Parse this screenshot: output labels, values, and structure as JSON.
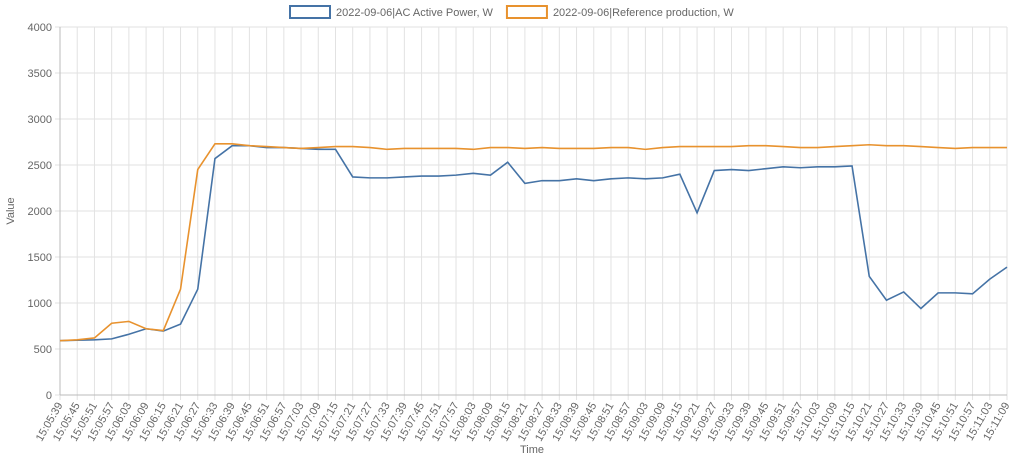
{
  "chart_data": {
    "type": "line",
    "xlabel": "Time",
    "ylabel": "Value",
    "categories": [
      "15:05:39",
      "15:05:45",
      "15:05:51",
      "15:05:57",
      "15:06:03",
      "15:06:09",
      "15:06:15",
      "15:06:21",
      "15:06:27",
      "15:06:33",
      "15:06:39",
      "15:06:45",
      "15:06:51",
      "15:06:57",
      "15:07:03",
      "15:07:09",
      "15:07:15",
      "15:07:21",
      "15:07:27",
      "15:07:33",
      "15:07:39",
      "15:07:45",
      "15:07:51",
      "15:07:57",
      "15:08:03",
      "15:08:09",
      "15:08:15",
      "15:08:21",
      "15:08:27",
      "15:08:33",
      "15:08:39",
      "15:08:45",
      "15:08:51",
      "15:08:57",
      "15:09:03",
      "15:09:09",
      "15:09:15",
      "15:09:21",
      "15:09:27",
      "15:09:33",
      "15:09:39",
      "15:09:45",
      "15:09:51",
      "15:09:57",
      "15:10:03",
      "15:10:09",
      "15:10:15",
      "15:10:21",
      "15:10:27",
      "15:10:33",
      "15:10:39",
      "15:10:45",
      "15:10:51",
      "15:10:57",
      "15:11:03",
      "15:11:09"
    ],
    "series": [
      {
        "name": "2022-09-06|AC Active Power, W",
        "color": "#4573a6",
        "values": [
          590,
          595,
          600,
          610,
          660,
          720,
          695,
          770,
          1150,
          2570,
          2710,
          2710,
          2690,
          2690,
          2680,
          2670,
          2670,
          2370,
          2360,
          2360,
          2370,
          2380,
          2380,
          2390,
          2410,
          2390,
          2530,
          2300,
          2330,
          2330,
          2350,
          2330,
          2350,
          2360,
          2350,
          2360,
          2400,
          1980,
          2440,
          2450,
          2440,
          2460,
          2480,
          2470,
          2480,
          2480,
          2490,
          1290,
          1030,
          1120,
          940,
          1110,
          1110,
          1100,
          1260,
          1390
        ]
      },
      {
        "name": "2022-09-06|Reference production, W",
        "color": "#e8922e",
        "values": [
          590,
          600,
          620,
          780,
          800,
          720,
          700,
          1150,
          2450,
          2730,
          2730,
          2710,
          2700,
          2690,
          2680,
          2690,
          2700,
          2700,
          2690,
          2670,
          2680,
          2680,
          2680,
          2680,
          2670,
          2690,
          2690,
          2680,
          2690,
          2680,
          2680,
          2680,
          2690,
          2690,
          2670,
          2690,
          2700,
          2700,
          2700,
          2700,
          2710,
          2710,
          2700,
          2690,
          2690,
          2700,
          2710,
          2720,
          2710,
          2710,
          2700,
          2690,
          2680,
          2690,
          2690,
          2690
        ]
      }
    ],
    "ylim": [
      0,
      4000
    ],
    "yticks": [
      0,
      500,
      1000,
      1500,
      2000,
      2500,
      3000,
      3500,
      4000
    ],
    "grid": true,
    "legend": "top"
  }
}
